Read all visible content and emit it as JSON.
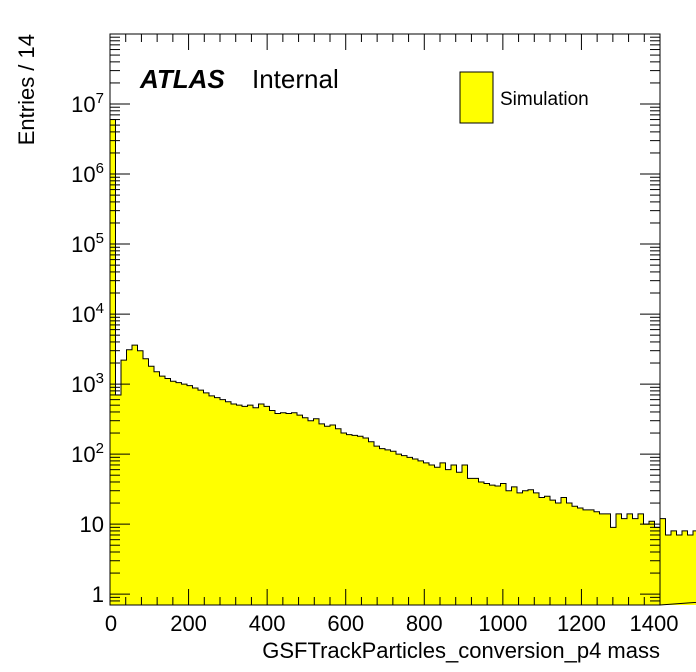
{
  "chart_data": {
    "type": "bar",
    "title": "",
    "xlabel": "GSFTrackParticles_conversion_p4 mass",
    "ylabel": "Entries / 14",
    "label_bold": "ATLAS",
    "label_status": "Internal",
    "legend": [
      {
        "name": "Simulation",
        "color": "#ffff00"
      }
    ],
    "log_y": true,
    "xlim": [
      0,
      1400
    ],
    "ylim": [
      0.7,
      100000000
    ],
    "bin_width": 14,
    "fill_color": "#ffff00",
    "line_color": "#000000",
    "x_ticks": [
      0,
      200,
      400,
      600,
      800,
      1000,
      1200,
      1400
    ],
    "y_ticks": [
      {
        "value": 1,
        "label": "1"
      },
      {
        "value": 10,
        "label": "10"
      },
      {
        "value": 100,
        "label": "10",
        "exp": "2"
      },
      {
        "value": 1000,
        "label": "10",
        "exp": "3"
      },
      {
        "value": 10000,
        "label": "10",
        "exp": "4"
      },
      {
        "value": 100000,
        "label": "10",
        "exp": "5"
      },
      {
        "value": 1000000,
        "label": "10",
        "exp": "6"
      },
      {
        "value": 10000000,
        "label": "10",
        "exp": "7"
      }
    ],
    "values": [
      6000000,
      700,
      2200,
      3100,
      3600,
      3000,
      2300,
      1800,
      1500,
      1300,
      1200,
      1100,
      1050,
      1000,
      950,
      880,
      820,
      750,
      680,
      640,
      600,
      560,
      520,
      500,
      480,
      500,
      460,
      520,
      480,
      420,
      380,
      390,
      380,
      390,
      360,
      330,
      300,
      320,
      270,
      250,
      260,
      230,
      200,
      190,
      185,
      180,
      170,
      150,
      130,
      120,
      115,
      110,
      100,
      95,
      90,
      85,
      80,
      75,
      70,
      65,
      75,
      60,
      70,
      55,
      70,
      45,
      45,
      40,
      38,
      36,
      35,
      38,
      30,
      34,
      28,
      30,
      31,
      28,
      24,
      25,
      22,
      20,
      24,
      20,
      18,
      17,
      16,
      16,
      15,
      14,
      14,
      9,
      14,
      12,
      14,
      12,
      14,
      10,
      11,
      9,
      12,
      7,
      8,
      7,
      8,
      7,
      8,
      6,
      7,
      5,
      14,
      6,
      6,
      12,
      5,
      6,
      4,
      3,
      6,
      5,
      4,
      6,
      3,
      14,
      6,
      6,
      2,
      12,
      8,
      5,
      4,
      3,
      2,
      5,
      12,
      6,
      4,
      5,
      6,
      4,
      4,
      4,
      5,
      6,
      4,
      5,
      4,
      4,
      6,
      4,
      3,
      4,
      4,
      4,
      4,
      5,
      4,
      6,
      3,
      7,
      4,
      4,
      4,
      7,
      3,
      4,
      3,
      4,
      7,
      4,
      3,
      4,
      5,
      4,
      4,
      2,
      3,
      7,
      4,
      4,
      5,
      4,
      4,
      4,
      4,
      4,
      5,
      3,
      4,
      6,
      4,
      3,
      4,
      4,
      3,
      3,
      3,
      3,
      3,
      3,
      3,
      3,
      3,
      3,
      3,
      3,
      3,
      3
    ]
  }
}
